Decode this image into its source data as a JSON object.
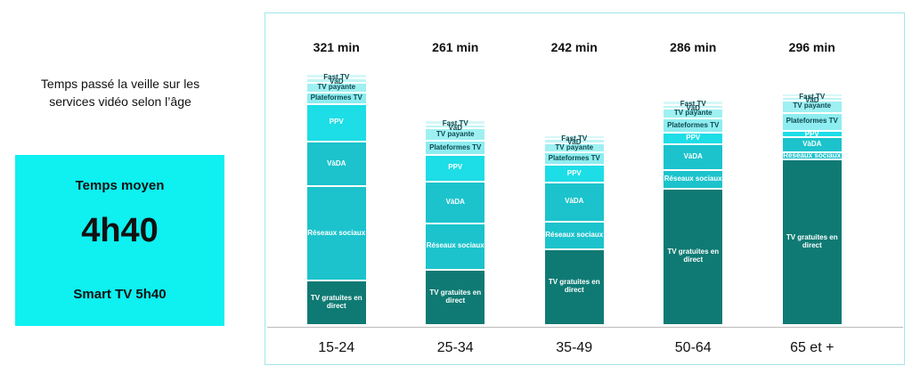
{
  "chart_data": {
    "type": "stacked-bar",
    "title": "Temps passé la veille sur les services vidéo selon l’âge",
    "summary": {
      "label": "Temps moyen",
      "value": "4h40",
      "note": "Smart TV 5h40"
    },
    "categories": [
      "15-24",
      "25-34",
      "35-49",
      "50-64",
      "65 et +"
    ],
    "totals": [
      "321 min",
      "261 min",
      "242 min",
      "286 min",
      "296 min"
    ],
    "series": [
      {
        "name": "TV gratuites en direct",
        "color": "#0f7a73",
        "values": [
          57,
          70,
          97,
          174,
          211
        ]
      },
      {
        "name": "Réseaux sociaux",
        "color": "#1cc3cc",
        "values": [
          120,
          60,
          35,
          24,
          10
        ]
      },
      {
        "name": "VàDA",
        "color": "#1cc3cc",
        "values": [
          57,
          53,
          50,
          33,
          19
        ]
      },
      {
        "name": "PPV",
        "color": "#1ddde6",
        "values": [
          48,
          34,
          22,
          14,
          8
        ]
      },
      {
        "name": "Plateformes TV",
        "color": "#8eedf0",
        "values": [
          15,
          18,
          16,
          19,
          23
        ]
      },
      {
        "name": "TV payante",
        "color": "#9ff0f2",
        "values": [
          12,
          16,
          12,
          12,
          15
        ]
      },
      {
        "name": "VàD",
        "color": "#bff4f5",
        "values": [
          6,
          5,
          5,
          5,
          5
        ]
      },
      {
        "name": "Fast TV",
        "color": "#d6f7f7",
        "values": [
          6,
          5,
          5,
          5,
          5
        ]
      }
    ]
  }
}
